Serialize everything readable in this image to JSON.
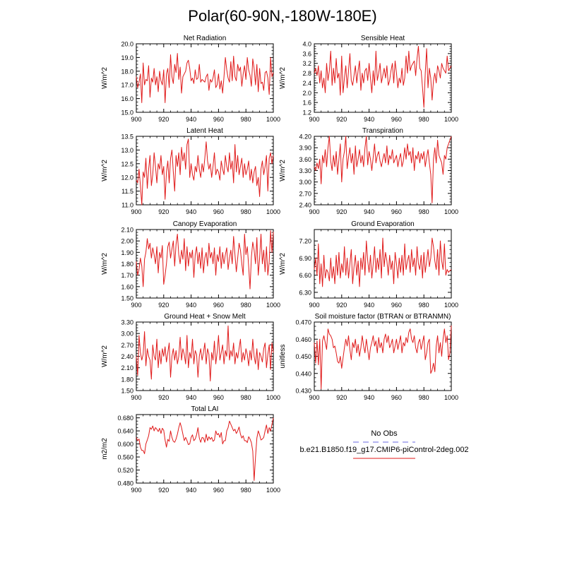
{
  "figure": {
    "title": "Polar(60-90N,-180W-180E)",
    "legend": {
      "obs_label": "No Obs",
      "obs_color": "#6a6ae0",
      "case_label": "b.e21.B1850.f19_g17.CMIP6-piControl-2deg.002",
      "case_color": "#e01a1a"
    },
    "line_color": "#e01a1a"
  },
  "chart_data": [
    {
      "type": "line",
      "title": "Net Radiation",
      "ylabel": "W/m^2",
      "xlim": [
        900,
        1000
      ],
      "ylim": [
        15.0,
        20.0
      ],
      "xticks": [
        900,
        920,
        940,
        960,
        980,
        1000
      ],
      "yticks": [
        15.0,
        16.0,
        17.0,
        18.0,
        19.0,
        20.0
      ],
      "ydecimals": 1,
      "x_start": 900,
      "x_step": 1,
      "values": [
        17.6,
        16.8,
        17.2,
        17.8,
        15.7,
        18.6,
        17.0,
        17.4,
        17.3,
        18.4,
        16.1,
        17.5,
        17.2,
        18.2,
        17.0,
        17.6,
        16.5,
        18.0,
        17.3,
        17.0,
        18.1,
        15.7,
        17.8,
        18.2,
        16.8,
        19.2,
        17.6,
        17.1,
        18.5,
        17.9,
        19.3,
        17.4,
        18.3,
        16.4,
        17.6,
        17.8,
        18.0,
        18.6,
        18.8,
        18.2,
        17.3,
        17.5,
        17.1,
        18.1,
        17.4,
        17.5,
        18.5,
        17.2,
        17.4,
        17.3,
        17.2,
        17.6,
        17.8,
        16.6,
        17.4,
        17.2,
        17.5,
        18.1,
        16.8,
        17.0,
        17.8,
        16.7,
        17.3,
        16.4,
        17.6,
        19.0,
        18.1,
        17.5,
        17.2,
        18.7,
        17.3,
        19.1,
        17.6,
        17.3,
        18.5,
        18.0,
        18.3,
        16.9,
        17.8,
        18.4,
        17.4,
        19.0,
        18.1,
        17.7,
        16.9,
        18.9,
        18.2,
        17.0,
        18.5,
        16.5,
        18.2,
        17.1,
        17.2,
        16.6,
        17.9,
        18.0,
        17.5,
        16.3,
        19.0,
        17.6,
        17.9
      ]
    },
    {
      "type": "line",
      "title": "Sensible Heat",
      "ylabel": "W/m^2",
      "xlim": [
        900,
        1000
      ],
      "ylim": [
        1.2,
        4.0
      ],
      "xticks": [
        900,
        920,
        940,
        960,
        980,
        1000
      ],
      "yticks": [
        1.2,
        1.6,
        2.0,
        2.4,
        2.8,
        3.2,
        3.6,
        4.0
      ],
      "ydecimals": 1,
      "x_start": 900,
      "x_step": 1,
      "values": [
        2.8,
        3.0,
        2.7,
        3.1,
        2.4,
        2.9,
        2.2,
        2.6,
        2.0,
        3.2,
        2.5,
        2.9,
        3.7,
        2.3,
        3.0,
        2.4,
        3.4,
        2.6,
        2.8,
        1.9,
        3.5,
        2.0,
        2.6,
        3.1,
        2.2,
        2.9,
        3.6,
        2.5,
        2.3,
        2.7,
        3.1,
        2.4,
        2.9,
        3.3,
        2.1,
        2.8,
        2.4,
        2.9,
        3.0,
        2.5,
        3.2,
        2.6,
        2.0,
        2.9,
        2.3,
        3.7,
        2.5,
        2.8,
        3.2,
        2.4,
        2.7,
        3.0,
        2.6,
        3.1,
        2.3,
        2.5,
        2.9,
        3.2,
        2.4,
        3.3,
        2.8,
        2.2,
        2.6,
        2.4,
        3.0,
        2.3,
        2.6,
        3.5,
        2.8,
        3.7,
        2.9,
        3.1,
        3.2,
        3.3,
        2.7,
        3.4,
        3.9,
        3.0,
        2.9,
        2.2,
        1.4,
        2.8,
        3.8,
        2.2,
        3.0,
        2.6,
        1.7,
        2.5,
        2.8,
        2.4,
        3.1,
        2.9,
        2.6,
        3.2,
        3.0,
        2.9,
        2.8,
        3.5,
        2.9,
        3.0,
        3.1
      ]
    },
    {
      "type": "line",
      "title": "Latent Heat",
      "ylabel": "W/m^2",
      "xlim": [
        900,
        1000
      ],
      "ylim": [
        11.0,
        13.5
      ],
      "xticks": [
        900,
        920,
        940,
        960,
        980,
        1000
      ],
      "yticks": [
        11.0,
        11.5,
        12.0,
        12.5,
        13.0,
        13.5
      ],
      "ydecimals": 1,
      "x_start": 900,
      "x_step": 1,
      "values": [
        11.9,
        11.8,
        12.3,
        11.7,
        11.0,
        12.2,
        12.0,
        12.7,
        11.6,
        12.3,
        12.8,
        11.7,
        12.1,
        12.9,
        12.4,
        11.8,
        12.5,
        12.3,
        12.8,
        12.1,
        12.4,
        11.2,
        12.2,
        12.6,
        11.8,
        12.7,
        13.0,
        12.2,
        11.5,
        12.8,
        12.4,
        12.9,
        12.1,
        13.1,
        12.6,
        12.9,
        12.3,
        13.2,
        13.4,
        12.0,
        12.5,
        12.1,
        11.9,
        12.4,
        12.2,
        12.8,
        12.3,
        12.0,
        12.5,
        12.2,
        12.7,
        13.3,
        12.6,
        12.3,
        12.5,
        12.0,
        12.4,
        12.9,
        12.1,
        12.3,
        12.2,
        11.9,
        12.6,
        12.3,
        12.1,
        12.8,
        12.4,
        12.2,
        12.9,
        12.3,
        12.6,
        11.8,
        13.2,
        12.2,
        12.8,
        12.1,
        12.4,
        12.7,
        12.0,
        12.5,
        12.1,
        12.3,
        12.6,
        11.9,
        12.3,
        11.8,
        12.2,
        12.4,
        11.7,
        12.0,
        11.3,
        12.3,
        12.6,
        12.1,
        12.4,
        12.8,
        11.5,
        12.7,
        12.9,
        12.5,
        12.8
      ]
    },
    {
      "type": "line",
      "title": "Transpiration",
      "ylabel": "W/m^2",
      "xlim": [
        900,
        1000
      ],
      "ylim": [
        2.4,
        4.2
      ],
      "xticks": [
        900,
        920,
        940,
        960,
        980,
        1000
      ],
      "yticks": [
        2.4,
        2.7,
        3.0,
        3.3,
        3.6,
        3.9,
        4.2
      ],
      "ydecimals": 2,
      "x_start": 900,
      "x_step": 1,
      "values": [
        3.4,
        3.3,
        3.5,
        3.35,
        3.6,
        2.95,
        3.7,
        3.5,
        3.85,
        3.4,
        3.9,
        4.2,
        3.55,
        3.3,
        3.7,
        3.4,
        3.8,
        3.2,
        3.6,
        4.0,
        3.0,
        3.6,
        3.8,
        4.2,
        3.35,
        3.65,
        3.9,
        3.5,
        3.75,
        3.2,
        3.95,
        3.4,
        3.6,
        3.85,
        3.5,
        3.7,
        3.4,
        3.9,
        4.2,
        3.45,
        3.8,
        3.6,
        3.3,
        3.65,
        4.0,
        3.5,
        3.7,
        3.8,
        3.55,
        3.4,
        3.6,
        3.75,
        3.5,
        3.95,
        3.45,
        3.7,
        3.6,
        3.85,
        3.5,
        3.6,
        3.7,
        3.4,
        3.6,
        3.75,
        3.4,
        3.55,
        3.9,
        3.6,
        4.0,
        3.7,
        3.8,
        3.5,
        3.9,
        3.3,
        3.7,
        3.6,
        3.8,
        3.5,
        3.75,
        3.6,
        3.8,
        3.4,
        3.65,
        3.85,
        3.5,
        3.2,
        2.45,
        3.6,
        3.9,
        3.5,
        4.1,
        3.7,
        3.6,
        3.5,
        3.2,
        3.7,
        3.6,
        3.9,
        4.0,
        4.1,
        4.2
      ]
    },
    {
      "type": "line",
      "title": "Canopy Evaporation",
      "ylabel": "W/m^2",
      "xlim": [
        900,
        1000
      ],
      "ylim": [
        1.5,
        2.1
      ],
      "xticks": [
        900,
        920,
        940,
        960,
        980,
        1000
      ],
      "yticks": [
        1.5,
        1.6,
        1.7,
        1.8,
        1.9,
        2.0,
        2.1
      ],
      "ydecimals": 2,
      "x_start": 900,
      "x_step": 1,
      "values": [
        1.82,
        1.7,
        1.75,
        1.85,
        1.78,
        1.6,
        1.84,
        1.9,
        2.02,
        1.93,
        1.98,
        1.85,
        1.94,
        1.88,
        1.8,
        1.95,
        1.72,
        1.9,
        1.85,
        1.96,
        1.62,
        1.7,
        1.8,
        1.95,
        1.99,
        1.85,
        1.93,
        2.0,
        1.78,
        1.97,
        2.06,
        1.88,
        1.8,
        1.92,
        1.84,
        2.02,
        1.74,
        1.95,
        1.78,
        1.9,
        1.85,
        1.92,
        1.68,
        1.88,
        1.95,
        1.8,
        1.9,
        1.76,
        1.94,
        1.72,
        1.85,
        1.9,
        1.78,
        1.98,
        1.85,
        1.9,
        1.8,
        1.94,
        1.7,
        1.88,
        1.82,
        1.95,
        1.76,
        1.9,
        1.8,
        1.88,
        1.94,
        1.75,
        1.85,
        1.92,
        1.8,
        2.04,
        1.88,
        1.73,
        1.85,
        1.98,
        1.92,
        1.8,
        1.7,
        2.06,
        1.88,
        1.95,
        1.78,
        1.58,
        1.86,
        1.99,
        1.92,
        1.8,
        2.03,
        1.7,
        1.85,
        2.06,
        1.8,
        1.92,
        1.73,
        1.95,
        1.7,
        1.82,
        2.09,
        1.9,
        2.08
      ]
    },
    {
      "type": "line",
      "title": "Ground Evaporation",
      "ylabel": "W/m^2",
      "xlim": [
        900,
        1000
      ],
      "ylim": [
        6.2,
        7.4
      ],
      "xticks": [
        900,
        920,
        940,
        960,
        980,
        1000
      ],
      "yticks": [
        6.3,
        6.6,
        6.9,
        7.2
      ],
      "ydecimals": 2,
      "x_start": 900,
      "x_step": 1,
      "values": [
        6.7,
        6.9,
        6.6,
        7.15,
        6.45,
        6.8,
        6.4,
        6.95,
        6.55,
        6.7,
        6.65,
        6.5,
        6.9,
        6.55,
        6.75,
        6.45,
        6.95,
        6.6,
        7.0,
        6.55,
        6.8,
        6.65,
        7.1,
        6.6,
        6.9,
        6.55,
        6.8,
        7.05,
        6.45,
        6.75,
        6.95,
        6.6,
        6.85,
        6.4,
        6.9,
        6.7,
        7.0,
        6.6,
        7.2,
        6.85,
        6.65,
        6.95,
        6.55,
        6.8,
        7.1,
        6.65,
        6.9,
        6.7,
        7.05,
        6.55,
        7.25,
        6.75,
        7.0,
        6.85,
        6.6,
        6.95,
        6.7,
        6.85,
        6.45,
        7.0,
        6.8,
        6.55,
        6.9,
        6.65,
        6.95,
        6.6,
        7.15,
        6.7,
        6.85,
        6.95,
        6.65,
        7.05,
        6.75,
        6.9,
        6.6,
        7.1,
        6.8,
        6.7,
        6.95,
        6.55,
        7.0,
        6.65,
        6.85,
        7.05,
        6.75,
        6.9,
        7.25,
        7.1,
        6.85,
        6.7,
        7.05,
        6.6,
        7.2,
        6.85,
        6.7,
        7.15,
        6.6,
        6.7,
        6.65,
        6.68,
        6.7
      ]
    },
    {
      "type": "line",
      "title": "Ground Heat + Snow Melt",
      "ylabel": "W/m^2",
      "xlim": [
        900,
        1000
      ],
      "ylim": [
        1.5,
        3.3
      ],
      "xticks": [
        900,
        920,
        940,
        960,
        980,
        1000
      ],
      "yticks": [
        1.5,
        1.8,
        2.1,
        2.4,
        2.7,
        3.0,
        3.3
      ],
      "ydecimals": 2,
      "x_start": 900,
      "x_step": 1,
      "values": [
        2.4,
        1.9,
        2.95,
        2.5,
        2.3,
        2.45,
        3.05,
        2.15,
        2.6,
        2.4,
        2.3,
        1.8,
        2.7,
        2.4,
        2.3,
        2.85,
        2.1,
        2.55,
        2.2,
        2.6,
        2.4,
        2.65,
        2.25,
        2.5,
        2.75,
        1.85,
        2.4,
        2.6,
        2.3,
        2.55,
        2.2,
        2.4,
        2.9,
        2.3,
        2.6,
        2.45,
        2.2,
        2.95,
        2.1,
        2.5,
        2.35,
        2.85,
        2.2,
        2.55,
        2.45,
        1.85,
        2.4,
        2.6,
        2.3,
        2.5,
        2.75,
        2.2,
        2.6,
        2.45,
        1.75,
        2.5,
        2.3,
        2.8,
        2.2,
        2.5,
        2.95,
        2.3,
        2.5,
        2.7,
        2.2,
        2.55,
        2.4,
        3.2,
        2.3,
        2.55,
        2.4,
        2.75,
        2.2,
        2.5,
        2.35,
        2.6,
        2.85,
        2.25,
        2.5,
        2.3,
        2.6,
        2.45,
        2.15,
        2.55,
        2.3,
        2.85,
        2.4,
        2.2,
        2.6,
        2.05,
        2.5,
        2.4,
        2.25,
        2.6,
        2.75,
        2.1,
        2.45,
        2.7,
        2.05,
        2.75,
        2.5
      ]
    },
    {
      "type": "line",
      "title": "Soil moisture factor (BTRAN or BTRANMN)",
      "ylabel": "unitless",
      "xlim": [
        900,
        1000
      ],
      "ylim": [
        0.43,
        0.47
      ],
      "xticks": [
        900,
        920,
        940,
        960,
        980,
        1000
      ],
      "yticks": [
        0.43,
        0.44,
        0.45,
        0.46,
        0.47
      ],
      "ydecimals": 3,
      "x_start": 900,
      "x_step": 1,
      "values": [
        0.458,
        0.446,
        0.459,
        0.445,
        0.46,
        0.431,
        0.459,
        0.462,
        0.458,
        0.454,
        0.466,
        0.463,
        0.462,
        0.46,
        0.455,
        0.456,
        0.452,
        0.447,
        0.446,
        0.45,
        0.443,
        0.449,
        0.455,
        0.46,
        0.456,
        0.462,
        0.454,
        0.448,
        0.458,
        0.455,
        0.46,
        0.452,
        0.457,
        0.45,
        0.455,
        0.462,
        0.456,
        0.452,
        0.46,
        0.454,
        0.448,
        0.455,
        0.458,
        0.462,
        0.456,
        0.459,
        0.452,
        0.461,
        0.455,
        0.458,
        0.452,
        0.46,
        0.463,
        0.458,
        0.462,
        0.455,
        0.457,
        0.46,
        0.452,
        0.456,
        0.46,
        0.454,
        0.458,
        0.462,
        0.452,
        0.458,
        0.456,
        0.461,
        0.458,
        0.464,
        0.466,
        0.46,
        0.458,
        0.462,
        0.455,
        0.452,
        0.458,
        0.46,
        0.454,
        0.458,
        0.462,
        0.448,
        0.452,
        0.458,
        0.46,
        0.44,
        0.442,
        0.446,
        0.441,
        0.456,
        0.462,
        0.452,
        0.458,
        0.45,
        0.46,
        0.466,
        0.458,
        0.462,
        0.448,
        0.452,
        0.468
      ]
    },
    {
      "type": "line",
      "title": "Total LAI",
      "ylabel": "m2/m2",
      "xlim": [
        900,
        1000
      ],
      "ylim": [
        0.48,
        0.69
      ],
      "xticks": [
        900,
        920,
        940,
        960,
        980,
        1000
      ],
      "yticks": [
        0.48,
        0.52,
        0.56,
        0.6,
        0.64,
        0.68
      ],
      "ydecimals": 3,
      "x_start": 900,
      "x_step": 1,
      "values": [
        0.62,
        0.61,
        0.615,
        0.59,
        0.58,
        0.58,
        0.57,
        0.6,
        0.612,
        0.625,
        0.65,
        0.645,
        0.655,
        0.64,
        0.65,
        0.645,
        0.638,
        0.648,
        0.632,
        0.648,
        0.642,
        0.612,
        0.59,
        0.614,
        0.608,
        0.64,
        0.62,
        0.608,
        0.605,
        0.615,
        0.63,
        0.65,
        0.665,
        0.65,
        0.63,
        0.61,
        0.62,
        0.61,
        0.598,
        0.6,
        0.62,
        0.628,
        0.61,
        0.615,
        0.628,
        0.65,
        0.618,
        0.605,
        0.62,
        0.618,
        0.605,
        0.63,
        0.61,
        0.622,
        0.614,
        0.62,
        0.608,
        0.612,
        0.64,
        0.628,
        0.632,
        0.62,
        0.635,
        0.6,
        0.61,
        0.61,
        0.64,
        0.65,
        0.67,
        0.66,
        0.65,
        0.64,
        0.645,
        0.632,
        0.64,
        0.652,
        0.63,
        0.618,
        0.625,
        0.61,
        0.61,
        0.604,
        0.622,
        0.615,
        0.604,
        0.578,
        0.488,
        0.56,
        0.618,
        0.64,
        0.628,
        0.612,
        0.615,
        0.62,
        0.64,
        0.658,
        0.632,
        0.65,
        0.64,
        0.66,
        0.68
      ]
    }
  ]
}
